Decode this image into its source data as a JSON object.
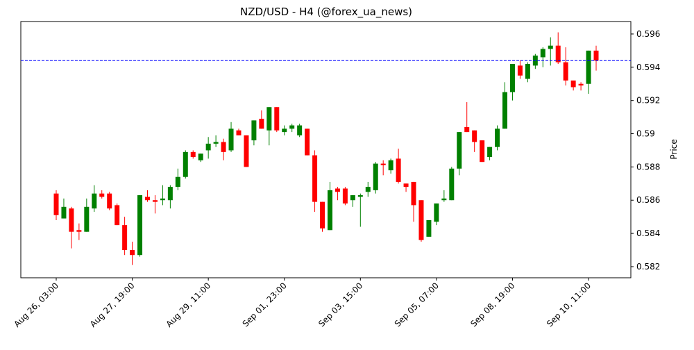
{
  "chart_data": {
    "type": "candlestick",
    "title": "NZD/USD - H4 (@forex_ua_news)",
    "y_label": "Price",
    "categories": [
      "Aug 26, 03:00",
      null,
      null,
      null,
      null,
      null,
      null,
      null,
      null,
      null,
      "Aug 27, 19:00",
      null,
      null,
      null,
      null,
      null,
      null,
      null,
      null,
      null,
      "Aug 29, 11:00",
      null,
      null,
      null,
      null,
      null,
      null,
      null,
      null,
      null,
      "Sep 01, 23:00",
      null,
      null,
      null,
      null,
      null,
      null,
      null,
      null,
      null,
      "Sep 03, 15:00",
      null,
      null,
      null,
      null,
      null,
      null,
      null,
      null,
      null,
      "Sep 05, 07:00",
      null,
      null,
      null,
      null,
      null,
      null,
      null,
      null,
      null,
      "Sep 08, 19:00",
      null,
      null,
      null,
      null,
      null,
      null,
      null,
      null,
      null,
      "Sep 10, 11:00",
      null
    ],
    "open": [
      0.5864,
      0.5849,
      0.5855,
      0.5842,
      0.5841,
      0.5855,
      0.5864,
      0.5864,
      0.5857,
      0.5845,
      0.583,
      0.5827,
      0.5862,
      0.586,
      0.586,
      0.586,
      0.5868,
      0.5874,
      0.5889,
      0.5884,
      0.589,
      0.5894,
      0.5895,
      0.589,
      0.5902,
      0.5899,
      0.5896,
      0.5909,
      0.5902,
      0.5916,
      0.5901,
      0.5903,
      0.5899,
      0.5903,
      0.5887,
      0.5859,
      0.5842,
      0.5867,
      0.5867,
      0.586,
      0.5862,
      0.5865,
      0.5866,
      0.5882,
      0.5878,
      0.5885,
      0.587,
      0.5871,
      0.586,
      0.5838,
      0.5847,
      0.586,
      0.586,
      0.5879,
      0.5904,
      0.5902,
      0.5896,
      0.5886,
      0.5892,
      0.5903,
      0.5925,
      0.5941,
      0.5933,
      0.5941,
      0.5946,
      0.5951,
      0.5953,
      0.5943,
      0.5932,
      0.593,
      0.593,
      0.595
    ],
    "high": [
      0.5866,
      0.5861,
      0.5856,
      0.5846,
      0.5861,
      0.5869,
      0.5866,
      0.5865,
      0.5858,
      0.585,
      0.5835,
      0.5863,
      0.5866,
      0.5863,
      0.5869,
      0.5869,
      0.5879,
      0.589,
      0.589,
      0.5888,
      0.5898,
      0.5899,
      0.5897,
      0.5907,
      0.5903,
      0.5899,
      0.5908,
      0.5914,
      0.5916,
      0.5916,
      0.5905,
      0.5906,
      0.5906,
      0.5903,
      0.589,
      0.5859,
      0.5871,
      0.5868,
      0.5868,
      0.5863,
      0.5864,
      0.5871,
      0.5883,
      0.5884,
      0.5885,
      0.5891,
      0.587,
      0.5871,
      0.586,
      0.5848,
      0.5858,
      0.5866,
      0.588,
      0.5901,
      0.5919,
      0.5902,
      0.5896,
      0.5892,
      0.5905,
      0.5931,
      0.5942,
      0.5944,
      0.5943,
      0.5948,
      0.5952,
      0.5958,
      0.5961,
      0.5952,
      0.5932,
      0.5931,
      0.595,
      0.5953
    ],
    "low": [
      0.5848,
      0.5849,
      0.5831,
      0.5836,
      0.5841,
      0.5853,
      0.5861,
      0.5854,
      0.5845,
      0.5827,
      0.5821,
      0.5826,
      0.5859,
      0.5852,
      0.5857,
      0.5855,
      0.5866,
      0.5873,
      0.5885,
      0.5883,
      0.5885,
      0.5892,
      0.5884,
      0.5889,
      0.5899,
      0.588,
      0.5893,
      0.5903,
      0.5893,
      0.5901,
      0.5899,
      0.5901,
      0.5898,
      0.5887,
      0.5853,
      0.5841,
      0.5842,
      0.586,
      0.5857,
      0.5856,
      0.5844,
      0.5862,
      0.5864,
      0.5875,
      0.5876,
      0.587,
      0.5865,
      0.5847,
      0.5835,
      0.5838,
      0.5845,
      0.5859,
      0.586,
      0.5875,
      0.5901,
      0.5889,
      0.5883,
      0.5884,
      0.589,
      0.5903,
      0.592,
      0.5933,
      0.5931,
      0.5939,
      0.594,
      0.5941,
      0.5942,
      0.5929,
      0.5926,
      0.5926,
      0.5924,
      0.5938
    ],
    "close": [
      0.5851,
      0.5856,
      0.5841,
      0.5841,
      0.5856,
      0.5864,
      0.5862,
      0.5855,
      0.5845,
      0.583,
      0.5827,
      0.5863,
      0.586,
      0.5859,
      0.5861,
      0.5868,
      0.5874,
      0.5889,
      0.5886,
      0.5888,
      0.5894,
      0.5895,
      0.5889,
      0.5903,
      0.5899,
      0.588,
      0.5908,
      0.5903,
      0.5916,
      0.5902,
      0.5903,
      0.5905,
      0.5905,
      0.5887,
      0.5859,
      0.5843,
      0.5866,
      0.5865,
      0.5858,
      0.5863,
      0.5863,
      0.5868,
      0.5882,
      0.5881,
      0.5884,
      0.5871,
      0.5868,
      0.5857,
      0.5836,
      0.5848,
      0.5858,
      0.5861,
      0.5879,
      0.5901,
      0.5901,
      0.5895,
      0.5883,
      0.5892,
      0.5903,
      0.5925,
      0.5942,
      0.5935,
      0.5942,
      0.5947,
      0.5951,
      0.5953,
      0.5943,
      0.5932,
      0.5928,
      0.5929,
      0.595,
      0.5944
    ],
    "up_color": "green",
    "down_color": "red",
    "hline": 0.5944,
    "hline_color": "blue",
    "ylim": [
      0.58133,
      0.59675
    ],
    "yticks": [
      0.582,
      0.584,
      0.586,
      0.588,
      0.59,
      0.592,
      0.594,
      0.596
    ]
  }
}
